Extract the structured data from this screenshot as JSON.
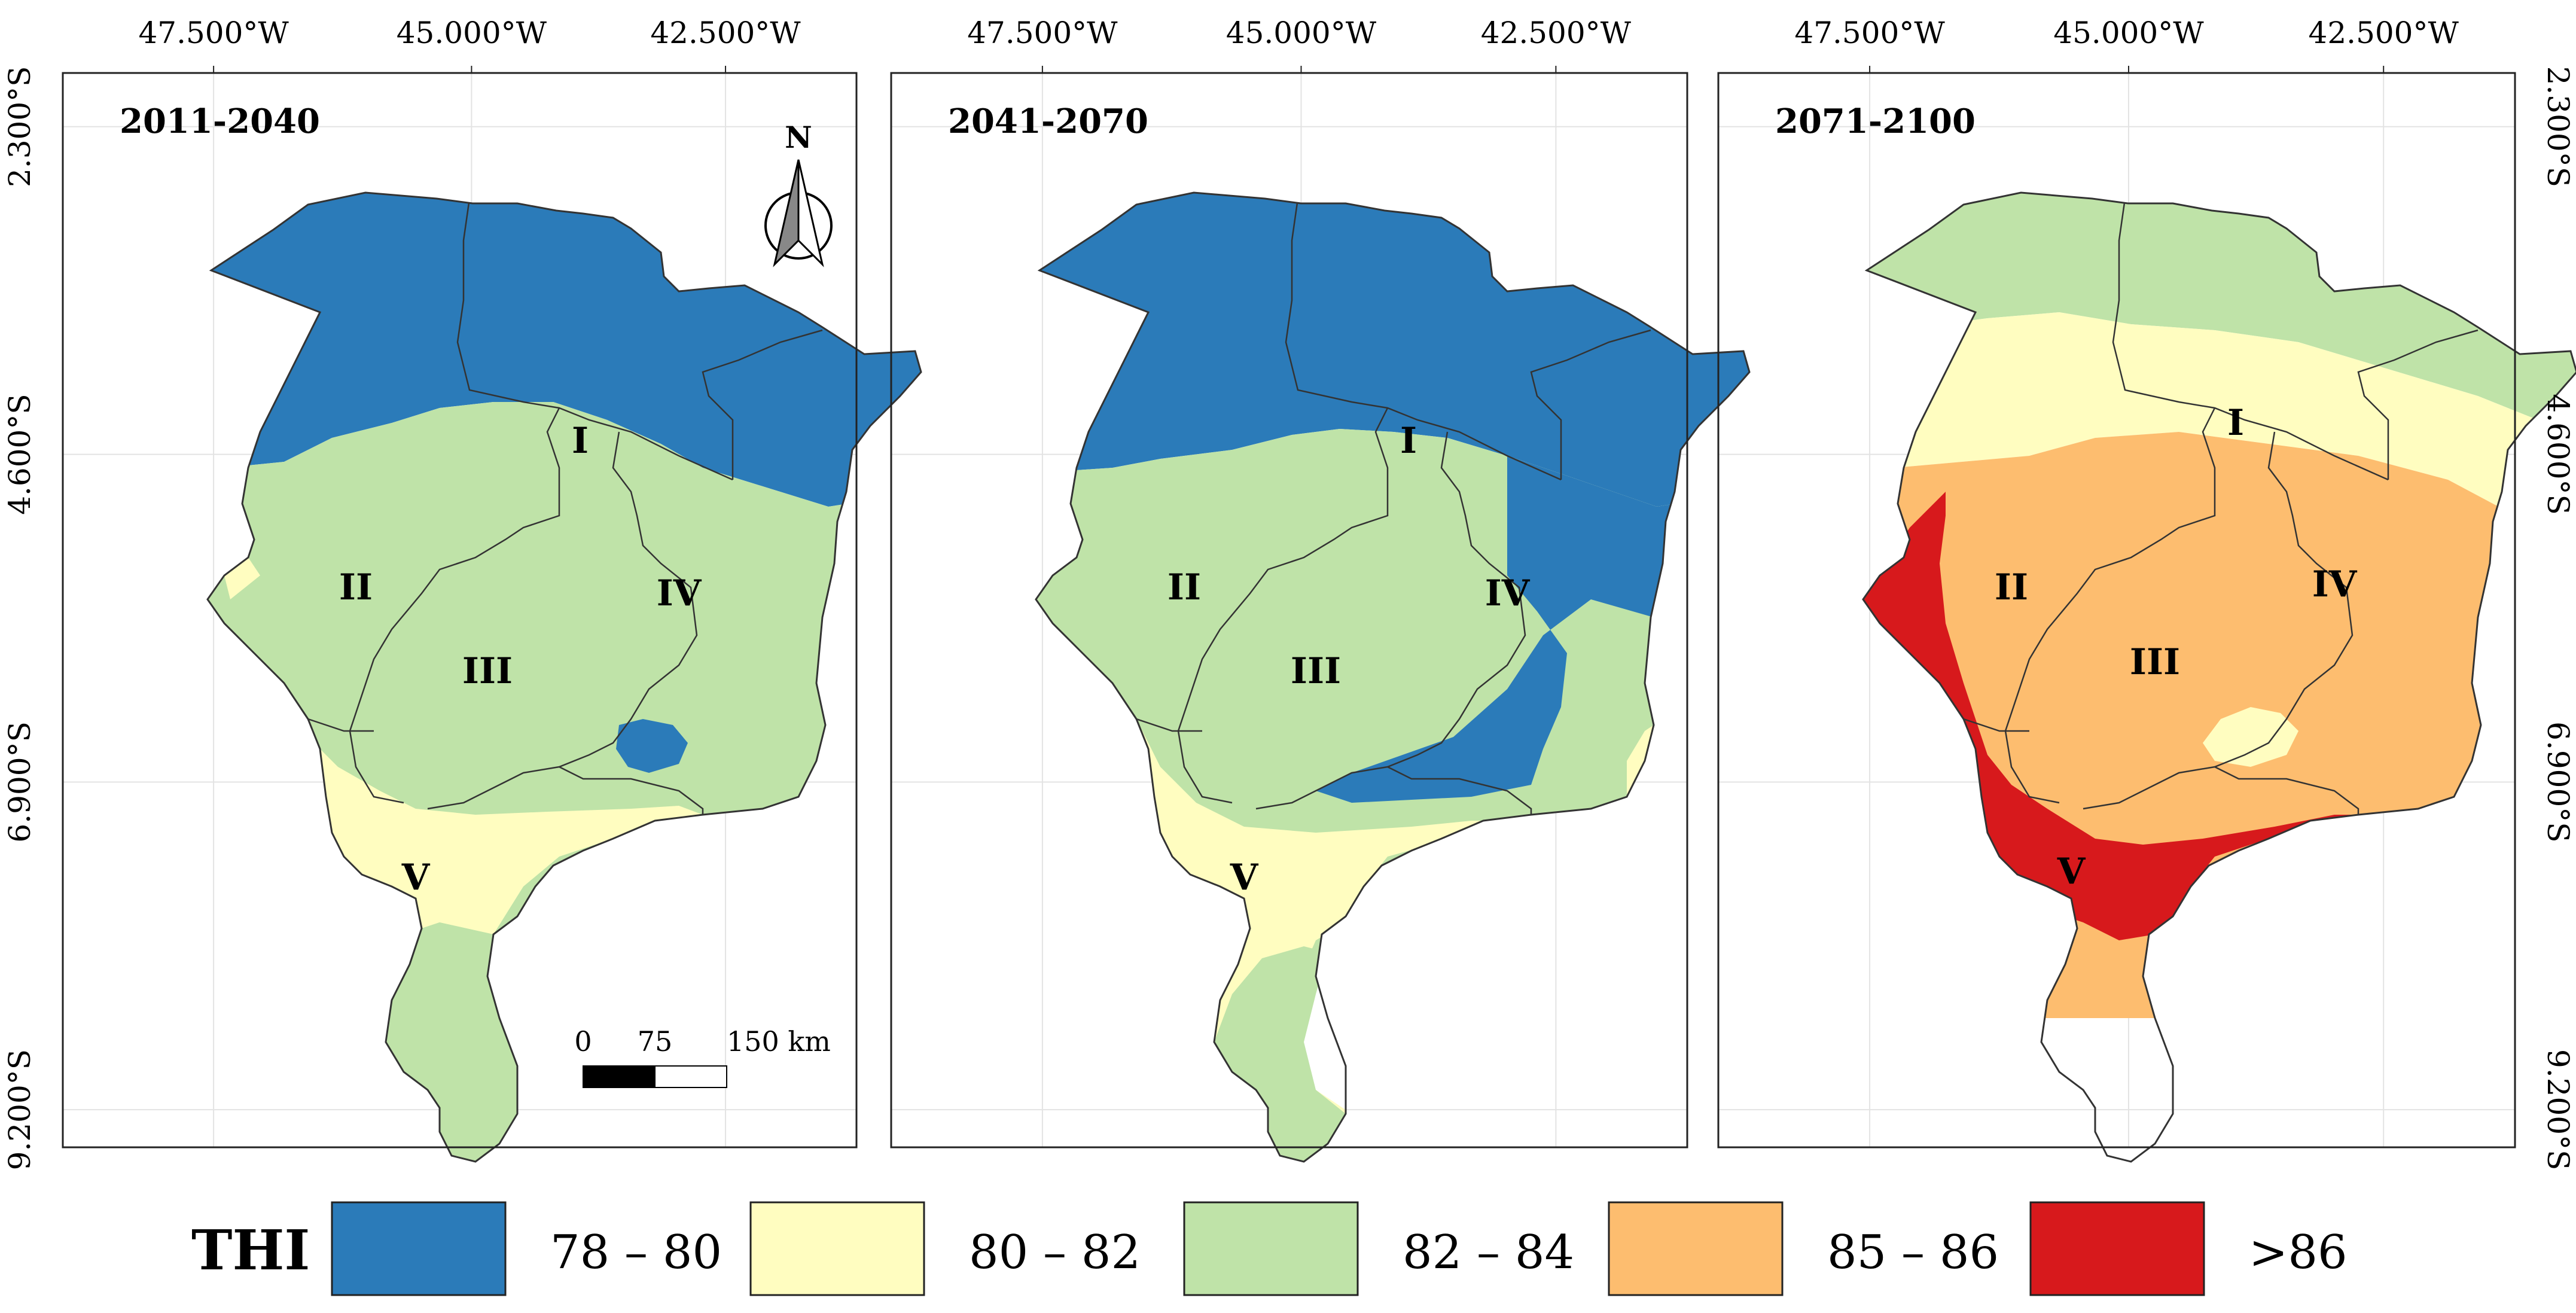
{
  "lon_ticks": [
    "47.500°W",
    "45.000°W",
    "42.500°W"
  ],
  "lat_ticks": [
    "2.300°S",
    "4.600°S",
    "6.900°S",
    "9.200°S"
  ],
  "panels": [
    {
      "period": "2011-2040",
      "zone_classes": {
        "north": "78 – 80",
        "middle": "82 – 84",
        "south_band": "80 – 82",
        "southwest": "80 – 82",
        "tail": "82 – 84",
        "patch": "78 – 80",
        "band": "80 – 82"
      },
      "regions": [
        "I",
        "II",
        "III",
        "IV",
        "V"
      ]
    },
    {
      "period": "2041-2070",
      "zone_classes": {
        "north": "78 – 80",
        "middle": "82 – 84",
        "east": "78 – 80",
        "southwest": "80 – 82",
        "tail": "82 – 84",
        "band": "80 – 82"
      },
      "regions": [
        "I",
        "II",
        "III",
        "IV",
        "V"
      ]
    },
    {
      "period": "2071-2100",
      "zone_classes": {
        "north": "82 – 84",
        "band": "80 – 82",
        "middle": "85 – 86",
        "west": ">86",
        "patch": "80 – 82"
      },
      "regions": [
        "I",
        "II",
        "III",
        "IV",
        "V"
      ]
    }
  ],
  "compass": {
    "label": "N"
  },
  "scale_bar": {
    "labels": [
      "0",
      "75",
      "150 km"
    ]
  },
  "legend": {
    "title": "THI",
    "items": [
      {
        "label": "78 – 80",
        "color": "#2b7bb9"
      },
      {
        "label": "80 – 82",
        "color": "#fffdc0"
      },
      {
        "label": "82 – 84",
        "color": "#bfe3a8"
      },
      {
        "label": "85 – 86",
        "color": "#fdbd6f"
      },
      {
        "label": ">86",
        "color": "#d7191c"
      }
    ]
  }
}
